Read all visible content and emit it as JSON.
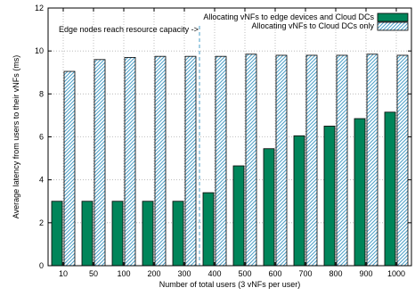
{
  "chart_data": {
    "type": "bar",
    "xlabel": "Number of total users (3 vNFs per user)",
    "ylabel": "Average latency from users to their vNFs (ms)",
    "ylim": [
      0,
      12
    ],
    "yticks": [
      0,
      2,
      4,
      6,
      8,
      10,
      12
    ],
    "grid": true,
    "legend_position": "top-right",
    "categories": [
      "10",
      "50",
      "100",
      "200",
      "300",
      "400",
      "500",
      "600",
      "700",
      "800",
      "900",
      "1000"
    ],
    "series": [
      {
        "name": "Allocating vNFs to edge devices and Cloud DCs",
        "color": "#00855a",
        "fill": "solid",
        "values": [
          3.0,
          3.0,
          3.0,
          3.0,
          3.0,
          3.4,
          4.65,
          5.45,
          6.05,
          6.5,
          6.85,
          7.15
        ]
      },
      {
        "name": "Allocating vNFs to Cloud DCs only",
        "color": "#4a9fc8",
        "fill": "hatched",
        "values": [
          9.05,
          9.6,
          9.7,
          9.75,
          9.75,
          9.75,
          9.85,
          9.8,
          9.8,
          9.8,
          9.85,
          9.8
        ]
      }
    ],
    "annotation": {
      "text": "Edge nodes reach resource capacity ->",
      "x_between": [
        "300",
        "400"
      ]
    }
  }
}
